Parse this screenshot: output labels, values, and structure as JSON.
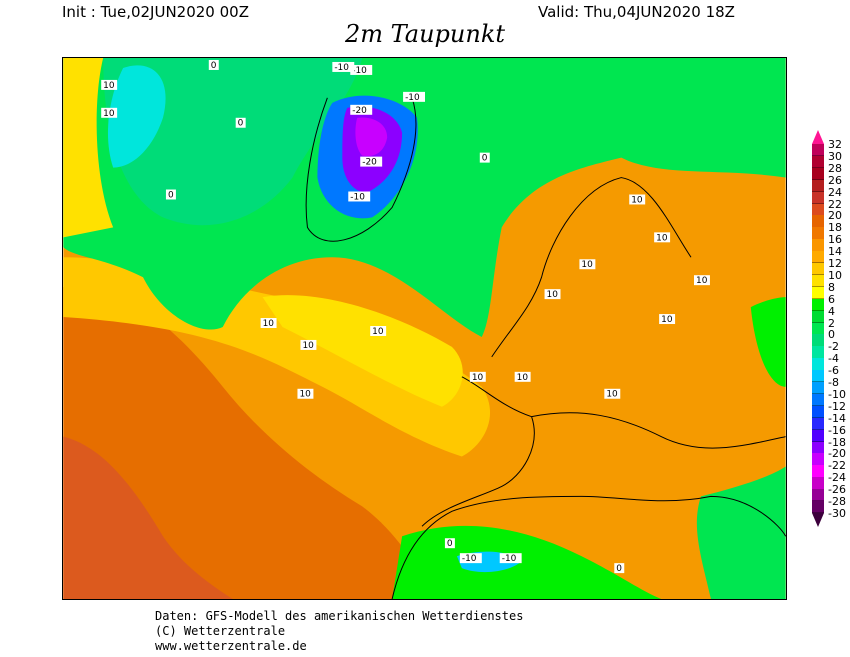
{
  "header": {
    "init": "Init : Tue,02JUN2020 00Z",
    "valid": "Valid: Thu,04JUN2020 18Z",
    "title": "2m Taupunkt"
  },
  "footer": {
    "line1": "Daten: GFS-Modell des amerikanischen Wetterdienstes",
    "line2": "(C) Wetterzentrale",
    "line3": "www.wetterzentrale.de"
  },
  "legend": {
    "labels": [
      "32",
      "30",
      "28",
      "26",
      "24",
      "22",
      "20",
      "18",
      "16",
      "14",
      "12",
      "10",
      "8",
      "6",
      "4",
      "2",
      "0",
      "-2",
      "-4",
      "-6",
      "-8",
      "-10",
      "-12",
      "-14",
      "-16",
      "-18",
      "-20",
      "-22",
      "-24",
      "-26",
      "-28",
      "-30"
    ],
    "top_color": "#ff1493",
    "bottom_color": "#3c003c",
    "colors": [
      "#c0005a",
      "#b00030",
      "#a8001e",
      "#b41e1e",
      "#c83228",
      "#dc4b1e",
      "#e66400",
      "#f07800",
      "#fa9600",
      "#ffaa00",
      "#ffc800",
      "#ffe100",
      "#ffff00",
      "#00f000",
      "#00dc32",
      "#00e650",
      "#00dc78",
      "#00e6a0",
      "#00e6dc",
      "#00c8ff",
      "#00a0ff",
      "#0078ff",
      "#0050ff",
      "#2828ff",
      "#5000ff",
      "#8c00ff",
      "#c800ff",
      "#ff00ff",
      "#c800c8",
      "#960096",
      "#640064"
    ]
  },
  "contour_labels": [
    "10",
    "10",
    "0",
    "0",
    "0",
    "-10",
    "-10",
    "-10",
    "-20",
    "-20",
    "-10",
    "0",
    "10",
    "10",
    "10",
    "10",
    "10",
    "10",
    "10",
    "10",
    "10",
    "10",
    "10",
    "10",
    "10",
    "-10",
    "-10",
    "0",
    "0"
  ]
}
